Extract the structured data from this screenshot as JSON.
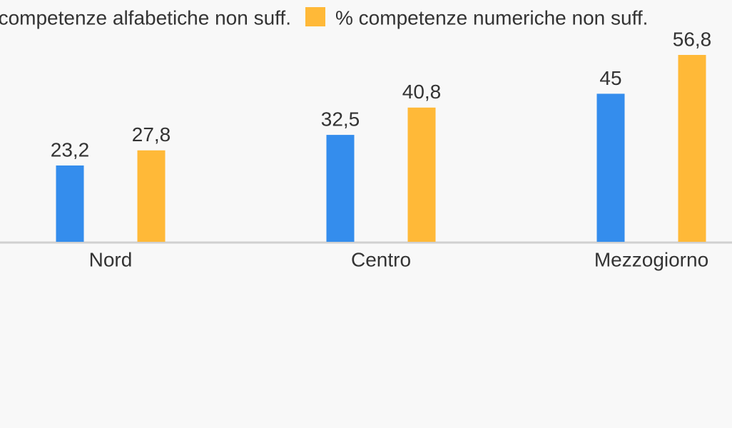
{
  "chart_data": {
    "type": "bar",
    "categories": [
      "Nord",
      "Centro",
      "Mezzogiorno"
    ],
    "series": [
      {
        "name": "competenze alfabetiche non suff.",
        "color": "#348ded",
        "values": [
          23.2,
          32.5,
          45
        ],
        "value_labels": [
          "23,2",
          "32,5",
          "45"
        ]
      },
      {
        "name": "% competenze numeriche non suff.",
        "color": "#ffb938",
        "values": [
          27.8,
          40.8,
          56.8
        ],
        "value_labels": [
          "27,8",
          "40,8",
          "56,8"
        ]
      }
    ]
  }
}
